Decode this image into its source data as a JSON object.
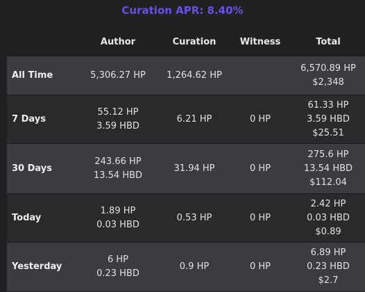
{
  "header": {
    "apr_label": "Curation APR: 8.40%"
  },
  "table": {
    "columns": {
      "period": "",
      "author": "Author",
      "curation": "Curation",
      "witness": "Witness",
      "total": "Total"
    },
    "rows": [
      {
        "period": "All Time",
        "author": [
          "5,306.27 HP"
        ],
        "curation": "1,264.62 HP",
        "witness": "",
        "total": [
          "6,570.89 HP",
          "$2,348"
        ]
      },
      {
        "period": "7 Days",
        "author": [
          "55.12 HP",
          "3.59 HBD"
        ],
        "curation": "6.21 HP",
        "witness": "0 HP",
        "total": [
          "61.33 HP",
          "3.59 HBD",
          "$25.51"
        ]
      },
      {
        "period": "30 Days",
        "author": [
          "243.66 HP",
          "13.54 HBD"
        ],
        "curation": "31.94 HP",
        "witness": "0 HP",
        "total": [
          "275.6 HP",
          "13.54 HBD",
          "$112.04"
        ]
      },
      {
        "period": "Today",
        "author": [
          "1.89 HP",
          "0.03 HBD"
        ],
        "curation": "0.53 HP",
        "witness": "0 HP",
        "total": [
          "2.42 HP",
          "0.03 HBD",
          "$0.89"
        ]
      },
      {
        "period": "Yesterday",
        "author": [
          "6 HP",
          "0.23 HBD"
        ],
        "curation": "0.9 HP",
        "witness": "0 HP",
        "total": [
          "6.89 HP",
          "0.23 HBD",
          "$2.7"
        ]
      }
    ]
  }
}
